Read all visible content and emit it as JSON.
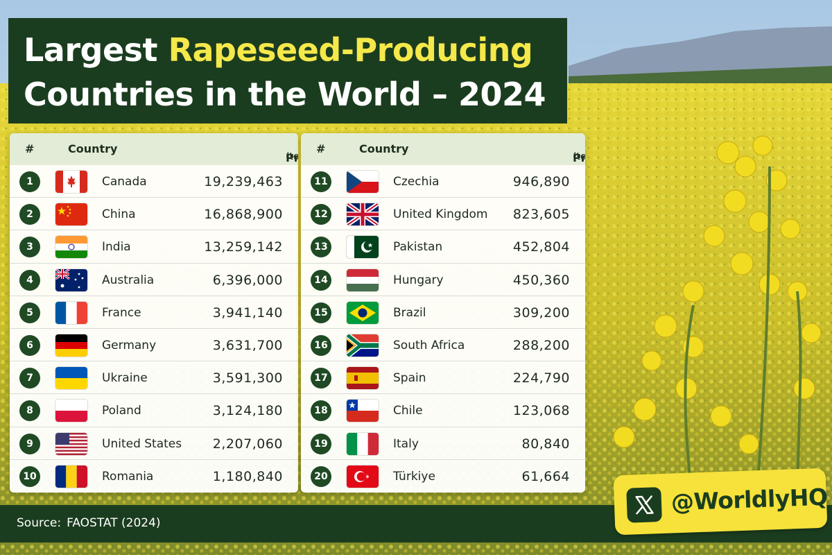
{
  "title": {
    "line1_part1": "Largest ",
    "line1_highlight": "Rapeseed-Producing",
    "line2": "Countries in the World – 2024"
  },
  "table_header": {
    "rank": "#",
    "country": "Country",
    "production": "Production",
    "unit": "(tonnes)"
  },
  "rows": [
    {
      "rank": "1",
      "country": "Canada",
      "production": "19,239,463",
      "flag": "canada"
    },
    {
      "rank": "2",
      "country": "China",
      "production": "16,868,900",
      "flag": "china"
    },
    {
      "rank": "3",
      "country": "India",
      "production": "13,259,142",
      "flag": "india"
    },
    {
      "rank": "4",
      "country": "Australia",
      "production": "6,396,000",
      "flag": "australia"
    },
    {
      "rank": "5",
      "country": "France",
      "production": "3,941,140",
      "flag": "france"
    },
    {
      "rank": "6",
      "country": "Germany",
      "production": "3,631,700",
      "flag": "germany"
    },
    {
      "rank": "7",
      "country": "Ukraine",
      "production": "3,591,300",
      "flag": "ukraine"
    },
    {
      "rank": "8",
      "country": "Poland",
      "production": "3,124,180",
      "flag": "poland"
    },
    {
      "rank": "9",
      "country": "United States",
      "production": "2,207,060",
      "flag": "usa"
    },
    {
      "rank": "10",
      "country": "Romania",
      "production": "1,180,840",
      "flag": "romania"
    },
    {
      "rank": "11",
      "country": "Czechia",
      "production": "946,890",
      "flag": "czechia"
    },
    {
      "rank": "12",
      "country": "United Kingdom",
      "production": "823,605",
      "flag": "uk"
    },
    {
      "rank": "13",
      "country": "Pakistan",
      "production": "452,804",
      "flag": "pakistan"
    },
    {
      "rank": "14",
      "country": "Hungary",
      "production": "450,360",
      "flag": "hungary"
    },
    {
      "rank": "15",
      "country": "Brazil",
      "production": "309,200",
      "flag": "brazil"
    },
    {
      "rank": "16",
      "country": "South Africa",
      "production": "288,200",
      "flag": "south-africa"
    },
    {
      "rank": "17",
      "country": "Spain",
      "production": "224,790",
      "flag": "spain"
    },
    {
      "rank": "18",
      "country": "Chile",
      "production": "123,068",
      "flag": "chile"
    },
    {
      "rank": "19",
      "country": "Italy",
      "production": "80,840",
      "flag": "italy"
    },
    {
      "rank": "20",
      "country": "Türkiye",
      "production": "61,664",
      "flag": "turkiye"
    }
  ],
  "footer": {
    "source_label": "Source:",
    "source_value": "FAOSTAT (2024)"
  },
  "handle": {
    "text": "@WorldlyHQ",
    "icon": "x-logo-icon"
  },
  "colors": {
    "banner": "#1b3d1f",
    "highlight": "#f5e84a",
    "badge": "#f6e23a",
    "rank_circle": "#1f4a24",
    "header_row": "#e2ecd6"
  }
}
